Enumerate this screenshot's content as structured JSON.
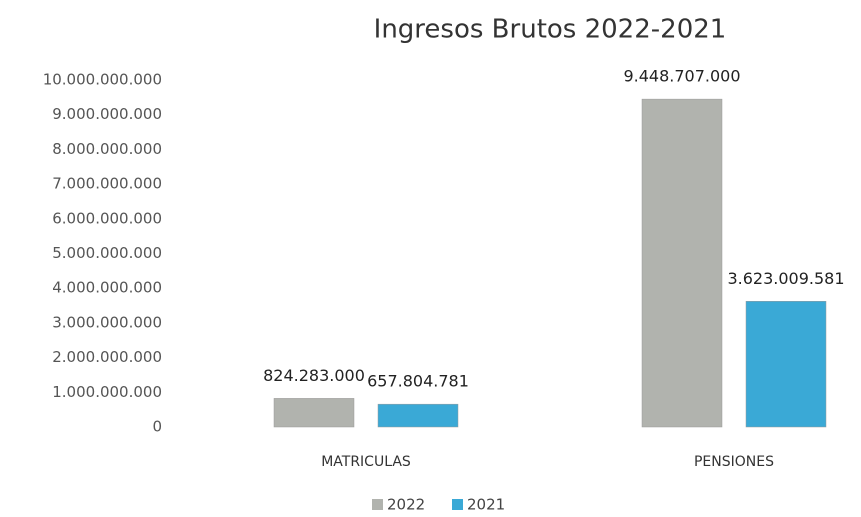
{
  "chart_data": {
    "type": "bar",
    "title": "Ingresos Brutos 2022-2021",
    "categories": [
      "MATRICULAS",
      "PENSIONES"
    ],
    "series": [
      {
        "name": "2022",
        "color": "#b1b3ae",
        "values": [
          824283000,
          9448707000
        ],
        "value_labels": [
          "824.283.000",
          "9.448.707.000"
        ]
      },
      {
        "name": "2021",
        "color": "#3aa9d6",
        "values": [
          657804781,
          3623009581
        ],
        "value_labels": [
          "657.804.781",
          "3.623.009.581"
        ]
      }
    ],
    "ylim": [
      0,
      10000000000
    ],
    "yticks": [
      0,
      {
        "value": 1000000000,
        "label": "1.000.000.000"
      },
      {
        "value": 2000000000,
        "label": "2.000.000.000"
      },
      {
        "value": 3000000000,
        "label": "3.000.000.000"
      },
      {
        "value": 4000000000,
        "label": "4.000.000.000"
      },
      {
        "value": 5000000000,
        "label": "5.000.000.000"
      },
      {
        "value": 6000000000,
        "label": "6.000.000.000"
      },
      {
        "value": 7000000000,
        "label": "7.000.000.000"
      },
      {
        "value": 8000000000,
        "label": "8.000.000.000"
      },
      {
        "value": 9000000000,
        "label": "9.000.000.000"
      },
      {
        "value": 10000000000,
        "label": "10.000.000.000"
      }
    ],
    "grid": false,
    "legend": "bottom"
  }
}
